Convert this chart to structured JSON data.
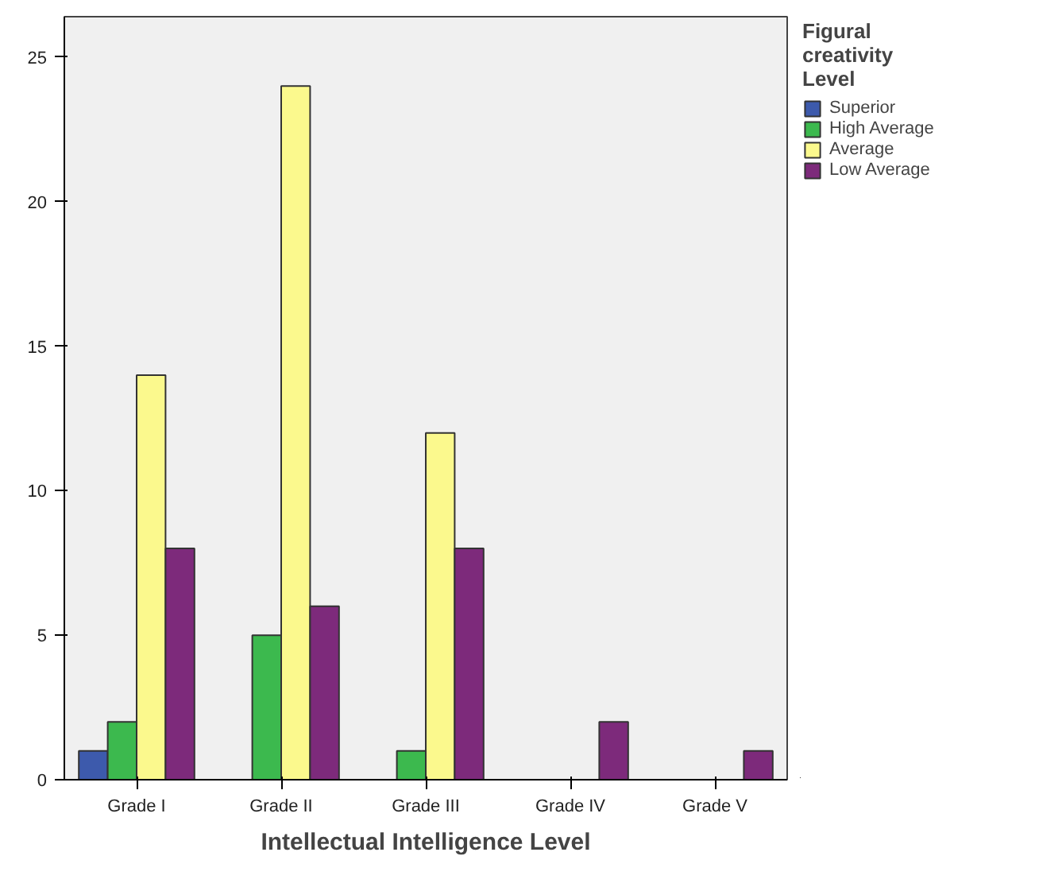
{
  "chart_data": {
    "type": "bar",
    "xlabel": "Intellectual Intelligence Level",
    "legend_title": "Figural creativity Level",
    "categories": [
      "Grade I",
      "Grade II",
      "Grade III",
      "Grade IV",
      "Grade V"
    ],
    "series": [
      {
        "name": "Superior",
        "color": "#3d5aac",
        "values": [
          1,
          null,
          null,
          null,
          null
        ]
      },
      {
        "name": "High Average",
        "color": "#3cb94e",
        "values": [
          2,
          5,
          1,
          null,
          null
        ]
      },
      {
        "name": "Average",
        "color": "#fbf98d",
        "values": [
          14,
          24,
          12,
          null,
          null
        ]
      },
      {
        "name": "Low Average",
        "color": "#7d2a7b",
        "values": [
          8,
          6,
          8,
          2,
          1
        ]
      }
    ],
    "ylim": [
      0,
      26.4
    ],
    "yticks": [
      0,
      5,
      10,
      15,
      20,
      25
    ],
    "grid": false,
    "legend": "right"
  }
}
